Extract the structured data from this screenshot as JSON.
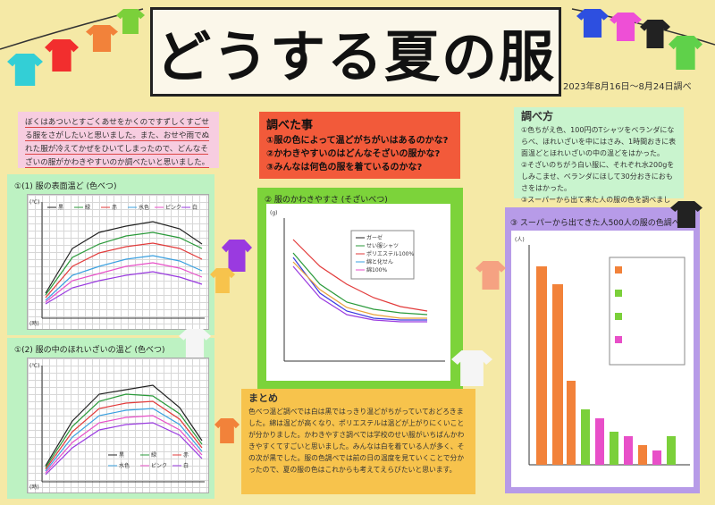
{
  "title": "どうする夏の服",
  "date": "2023年8月16日～8月24日調べ",
  "intro": "ぼくはあついとすごくあせをかくのですずしくすごせる服をさがしたいと思いました。また、おせや雨でぬれた服が冷えてかぜをひいてしまったので、どんなそざいの服がかわきやすいのか調べたいと思いました。",
  "questions": {
    "title": "調べた事",
    "items": [
      "①服の色によって温どがちがいはあるのかな?",
      "②かわきやすいのはどんなそざいの服かな?",
      "③みんなは何色の服を着ているのかな?"
    ]
  },
  "method": {
    "title": "調べ方",
    "items": [
      "①色ちがえ色、100円のTシャツをベランダにならべ、ほれいざいを中にはさみ、1時間おきに表面温どとほれいざいの中の温どをはかった。",
      "②そざいのちがう白い服に、それぞれ水200gをしみこませ、ベランダにほして30分おきにおもさをはかった。",
      "③スーパーから出て来た人の服の色を調べました。"
    ]
  },
  "graph1": {
    "label": "①(1) 服の表面温ど (色べつ)",
    "unit": "(℃)",
    "xlabel": "(時)",
    "legend": [
      "黒",
      "緑",
      "赤",
      "水色",
      "ピンク",
      "白"
    ]
  },
  "graph2": {
    "label": "①(2) 服の中のほれいざいの温ど (色べつ)",
    "unit": "(℃)",
    "xlabel": "(時)",
    "legend": [
      "黒",
      "緑",
      "赤",
      "水色",
      "ピンク",
      "白"
    ]
  },
  "graph3": {
    "label": "② 服のかわきやすさ (そざいべつ)",
    "unit": "(g)",
    "legend": [
      "ガーゼ",
      "せい服シャツ",
      "ポリエステル100%",
      "綿と化せん",
      "綿100%"
    ]
  },
  "graph4": {
    "label": "③ スーパーから出てきた人500人の服の色調べ",
    "unit": "(人)"
  },
  "summary": {
    "title": "まとめ",
    "text": "色べつ温ど調べでは白は黒ではっきり温どがちがっていておどろきました。綿は温どが高くなり、ポリエステルは温どが上がりにくいことが分かりました。かわきやすさ調べでは学校のせい服がいちばんかわきやすくてすごいと思いました。みんなは白を着ている人が多く、その次が黒でした。服の色調べでは前の日の温度を見ていくことで分かったので、夏の服の色はこれからも考えてえらびたいと思います。"
  },
  "colors": {
    "bg": "#f5e9a6",
    "pink_panel": "#f7cde0",
    "red_panel": "#f25a3a",
    "green_panel": "#7cd33a",
    "purple_panel": "#b79be8",
    "yellow_panel": "#f7c34c",
    "mint_panel": "#bdf2c2"
  }
}
